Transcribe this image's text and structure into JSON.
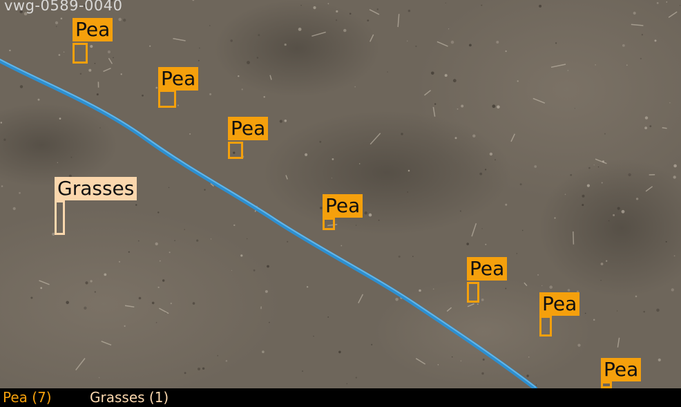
{
  "image_id": "vwg-0589-0040",
  "colors": {
    "pea": "#f5a00c",
    "grasses": "#fbd7ad",
    "soil": "#6e665b",
    "hose": "#2d8fd0"
  },
  "detections": [
    {
      "label": "Pea",
      "class": "pea"
    },
    {
      "label": "Pea",
      "class": "pea"
    },
    {
      "label": "Pea",
      "class": "pea"
    },
    {
      "label": "Grasses",
      "class": "grass"
    },
    {
      "label": "Pea",
      "class": "pea"
    },
    {
      "label": "Pea",
      "class": "pea"
    },
    {
      "label": "Pea",
      "class": "pea"
    },
    {
      "label": "Pea",
      "class": "pea"
    }
  ],
  "legend": [
    {
      "text": "Pea (7)",
      "class": "pea"
    },
    {
      "text": "Grasses (1)",
      "class": "grass"
    }
  ]
}
